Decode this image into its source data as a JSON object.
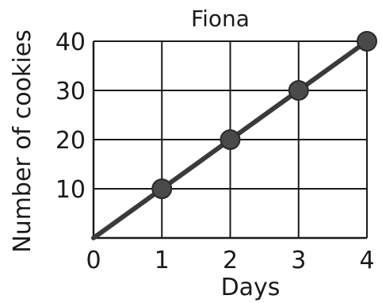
{
  "chart_data": {
    "type": "line",
    "title": "Fiona",
    "xlabel": "Days",
    "ylabel": "Number of cookies",
    "x": [
      0,
      1,
      2,
      3,
      4
    ],
    "series": [
      {
        "values": [
          0,
          10,
          20,
          30,
          40
        ]
      }
    ],
    "xlim": [
      0,
      4
    ],
    "ylim": [
      0,
      40
    ],
    "xticks": [
      "0",
      "1",
      "2",
      "3",
      "4"
    ],
    "yticks": [
      "10",
      "20",
      "30",
      "40"
    ],
    "yticks_values": [
      10,
      20,
      30,
      40
    ],
    "grid": true,
    "colors": {
      "line": "#3a3a3a",
      "marker": "#4a4a4a",
      "grid": "#1a1a1a"
    }
  }
}
